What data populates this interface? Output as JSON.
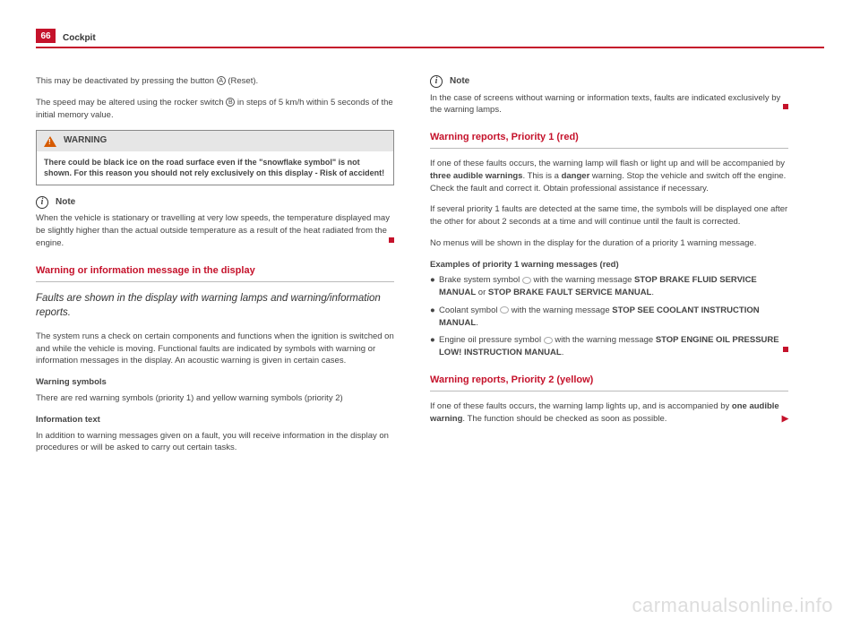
{
  "header": {
    "page_number": "66",
    "section": "Cockpit"
  },
  "colors": {
    "accent": "#c5122b",
    "warning_orange": "#d65a00",
    "grey_box": "#e6e6e6",
    "text": "#444444"
  },
  "left_column": {
    "p1_pre": "This may be deactivated by pressing the button ",
    "p1_badge": "A",
    "p1_post": " (Reset).",
    "p2_pre": "The speed may be altered using the rocker switch ",
    "p2_badge": "B",
    "p2_post": " in steps of 5 km/h within 5 seconds of the initial memory value.",
    "warning": {
      "title": "WARNING",
      "body": "There could be black ice on the road surface even if the \"snowflake symbol\" is not shown. For this reason you should not rely exclusively on this display - Risk of accident!"
    },
    "note1": {
      "label": "Note",
      "body": "When the vehicle is stationary or travelling at very low speeds, the temperature displayed may be slightly higher than the actual outside temperature as a result of the heat radiated from the engine."
    },
    "h1": "Warning or information message in the display",
    "sub1": "Faults are shown in the display with warning lamps and warning/information reports.",
    "p3": "The system runs a check on certain components and functions when the ignition is switched on and while the vehicle is moving. Functional faults are indicated by symbols with warning or information messages in the display. An acoustic warning is given in certain cases.",
    "b1_title": "Warning symbols",
    "b1_body": "There are red warning symbols (priority 1) and yellow warning symbols (priority 2)",
    "b2_title": "Information text",
    "b2_body": "In addition to warning messages given on a fault, you will receive information in the display on procedures or will be asked to carry out certain tasks."
  },
  "right_column": {
    "note2": {
      "label": "Note",
      "body": "In the case of screens without warning or information texts, faults are indicated exclusively by the warning lamps."
    },
    "h2": "Warning reports, Priority 1 (red)",
    "p4_pre": "If one of these faults occurs, the warning lamp will flash or light up and will be accompanied by ",
    "p4_b1": "three audible warnings",
    "p4_mid": ". This is a ",
    "p4_b2": "danger",
    "p4_post": " warning. Stop the vehicle and switch off the engine. Check the fault and correct it. Obtain professional assistance if necessary.",
    "p5": "If several priority 1 faults are detected at the same time, the symbols will be displayed one after the other for about 2 seconds at a time and will continue until the fault is corrected.",
    "p6": "No menus will be shown in the display for the duration of a priority 1 warning message.",
    "ex_title": "Examples of priority 1 warning messages (red)",
    "bullets": [
      {
        "pre": "Brake system symbol ",
        "msg_pre": " with the warning message ",
        "msg1": "STOP BRAKE FLUID SERVICE MANUAL",
        "or": " or ",
        "msg2": "STOP BRAKE FAULT SERVICE MANUAL",
        "post": "."
      },
      {
        "pre": "Coolant symbol ",
        "msg_pre": " with the warning message ",
        "msg1": "STOP SEE COOLANT INSTRUCTION MANUAL",
        "post": "."
      },
      {
        "pre": "Engine oil pressure symbol ",
        "msg_pre": " with the warning message ",
        "msg1": "STOP ENGINE OIL PRESSURE LOW! INSTRUCTION MANUAL",
        "post": "."
      }
    ],
    "h3": "Warning reports, Priority 2 (yellow)",
    "p7_pre": "If one of these faults occurs, the warning lamp lights up, and is accompanied by ",
    "p7_b": "one audible warning",
    "p7_post": ". The function should be checked as soon as possible."
  },
  "watermark": "carmanualsonline.info"
}
